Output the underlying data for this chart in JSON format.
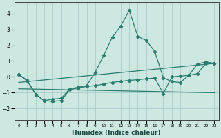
{
  "xlabel": "Humidex (Indice chaleur)",
  "xlim": [
    -0.5,
    23.5
  ],
  "ylim": [
    -2.7,
    4.7
  ],
  "yticks": [
    -2,
    -1,
    0,
    1,
    2,
    3,
    4
  ],
  "xticks": [
    0,
    1,
    2,
    3,
    4,
    5,
    6,
    7,
    8,
    9,
    10,
    11,
    12,
    13,
    14,
    15,
    16,
    17,
    18,
    19,
    20,
    21,
    22,
    23
  ],
  "background_color": "#cce8e0",
  "line_color": "#2a7d6e",
  "grid_color": "#aacccc",
  "line1_x": [
    0,
    1,
    2,
    3,
    4,
    5,
    6,
    7,
    8,
    9,
    10,
    11,
    12,
    13,
    14,
    15,
    16,
    17,
    18,
    19,
    20,
    21,
    22,
    23
  ],
  "line1_y": [
    0.15,
    -0.25,
    -1.1,
    -1.5,
    -1.4,
    -1.35,
    -0.75,
    -0.65,
    -0.55,
    0.3,
    1.35,
    2.5,
    3.2,
    4.2,
    2.55,
    2.3,
    1.6,
    -0.05,
    -0.3,
    -0.35,
    0.1,
    0.8,
    0.95,
    0.85
  ],
  "line2_x": [
    0,
    1,
    2,
    3,
    4,
    5,
    6,
    7,
    8,
    9,
    10,
    11,
    12,
    13,
    14,
    15,
    16,
    17,
    18,
    19,
    20,
    21,
    22,
    23
  ],
  "line2_y": [
    0.15,
    -0.2,
    -1.1,
    -1.5,
    -1.55,
    -1.5,
    -0.8,
    -0.7,
    -0.6,
    -0.55,
    -0.45,
    -0.35,
    -0.28,
    -0.22,
    -0.18,
    -0.12,
    -0.07,
    -1.05,
    0.0,
    0.05,
    0.1,
    0.2,
    0.85,
    0.85
  ],
  "line3_x": [
    0,
    23
  ],
  "line3_y": [
    -0.75,
    -1.0
  ],
  "line4_x": [
    0,
    23
  ],
  "line4_y": [
    -0.35,
    0.85
  ]
}
